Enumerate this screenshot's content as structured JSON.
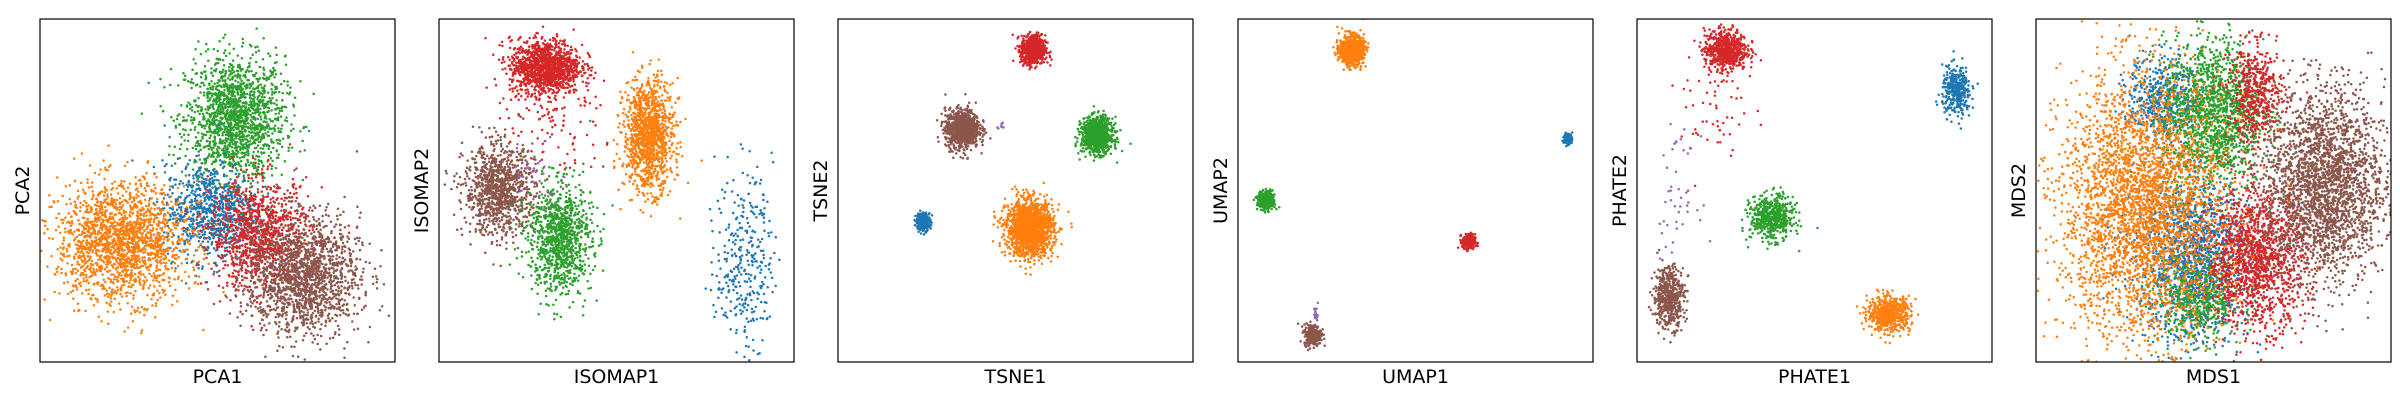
{
  "figure": {
    "colors": [
      "#1f77b4",
      "#ff7f0e",
      "#2ca02c",
      "#d62728",
      "#9467bd",
      "#8c564b"
    ]
  },
  "chart_data": [
    {
      "type": "scatter",
      "title": "",
      "xlabel": "PCA1",
      "ylabel": "PCA2",
      "xlim": [
        0,
        1
      ],
      "ylim": [
        0,
        1
      ],
      "ticks": false,
      "grid": false,
      "legend": "none",
      "clusters": [
        {
          "color": "#2ca02c",
          "cx": 0.55,
          "cy": 0.71,
          "sx": 0.07,
          "sy": 0.09,
          "n": 1600
        },
        {
          "color": "#1f77b4",
          "cx": 0.48,
          "cy": 0.44,
          "sx": 0.065,
          "sy": 0.07,
          "n": 800
        },
        {
          "color": "#ff7f0e",
          "cx": 0.23,
          "cy": 0.35,
          "sx": 0.09,
          "sy": 0.085,
          "n": 1800
        },
        {
          "color": "#d62728",
          "cx": 0.62,
          "cy": 0.37,
          "sx": 0.07,
          "sy": 0.08,
          "n": 1000
        },
        {
          "color": "#8c564b",
          "cx": 0.74,
          "cy": 0.25,
          "sx": 0.08,
          "sy": 0.085,
          "n": 1600
        }
      ]
    },
    {
      "type": "scatter",
      "title": "",
      "xlabel": "ISOMAP1",
      "ylabel": "ISOMAP2",
      "xlim": [
        0,
        1
      ],
      "ylim": [
        0,
        1
      ],
      "ticks": false,
      "grid": false,
      "legend": "none",
      "clusters": [
        {
          "color": "#d62728",
          "cx": 0.3,
          "cy": 0.86,
          "sx": 0.05,
          "sy": 0.04,
          "n": 1200
        },
        {
          "color": "#d62728",
          "cx": 0.33,
          "cy": 0.68,
          "sx": 0.09,
          "sy": 0.09,
          "n": 120
        },
        {
          "color": "#ff7f0e",
          "cx": 0.59,
          "cy": 0.66,
          "sx": 0.035,
          "sy": 0.08,
          "n": 1200
        },
        {
          "color": "#8c564b",
          "cx": 0.17,
          "cy": 0.5,
          "sx": 0.05,
          "sy": 0.065,
          "n": 1000
        },
        {
          "color": "#2ca02c",
          "cx": 0.34,
          "cy": 0.36,
          "sx": 0.045,
          "sy": 0.08,
          "n": 1000
        },
        {
          "color": "#1f77b4",
          "cx": 0.86,
          "cy": 0.3,
          "sx": 0.04,
          "sy": 0.13,
          "n": 320
        },
        {
          "color": "#9467bd",
          "cx": 0.28,
          "cy": 0.55,
          "sx": 0.04,
          "sy": 0.05,
          "n": 30
        }
      ]
    },
    {
      "type": "scatter",
      "title": "",
      "xlabel": "TSNE1",
      "ylabel": "TSNE2",
      "xlim": [
        0,
        1
      ],
      "ylim": [
        0,
        1
      ],
      "ticks": false,
      "grid": false,
      "legend": "none",
      "clusters": [
        {
          "color": "#d62728",
          "cx": 0.55,
          "cy": 0.91,
          "sx": 0.017,
          "sy": 0.021,
          "n": 700
        },
        {
          "color": "#8c564b",
          "cx": 0.35,
          "cy": 0.68,
          "sx": 0.024,
          "sy": 0.028,
          "n": 900
        },
        {
          "color": "#2ca02c",
          "cx": 0.73,
          "cy": 0.66,
          "sx": 0.022,
          "sy": 0.026,
          "n": 900
        },
        {
          "color": "#1f77b4",
          "cx": 0.24,
          "cy": 0.41,
          "sx": 0.01,
          "sy": 0.013,
          "n": 250
        },
        {
          "color": "#ff7f0e",
          "cx": 0.54,
          "cy": 0.39,
          "sx": 0.033,
          "sy": 0.04,
          "n": 1600
        },
        {
          "color": "#9467bd",
          "cx": 0.46,
          "cy": 0.69,
          "sx": 0.006,
          "sy": 0.006,
          "n": 8
        }
      ]
    },
    {
      "type": "scatter",
      "title": "",
      "xlabel": "UMAP1",
      "ylabel": "UMAP2",
      "xlim": [
        0,
        1
      ],
      "ylim": [
        0,
        1
      ],
      "ticks": false,
      "grid": false,
      "legend": "none",
      "clusters": [
        {
          "color": "#ff7f0e",
          "cx": 0.32,
          "cy": 0.91,
          "sx": 0.017,
          "sy": 0.021,
          "n": 700
        },
        {
          "color": "#1f77b4",
          "cx": 0.93,
          "cy": 0.65,
          "sx": 0.006,
          "sy": 0.008,
          "n": 120
        },
        {
          "color": "#2ca02c",
          "cx": 0.08,
          "cy": 0.47,
          "sx": 0.012,
          "sy": 0.014,
          "n": 300
        },
        {
          "color": "#d62728",
          "cx": 0.65,
          "cy": 0.35,
          "sx": 0.009,
          "sy": 0.011,
          "n": 250
        },
        {
          "color": "#8c564b",
          "cx": 0.21,
          "cy": 0.08,
          "sx": 0.012,
          "sy": 0.015,
          "n": 300
        },
        {
          "color": "#9467bd",
          "cx": 0.22,
          "cy": 0.14,
          "sx": 0.003,
          "sy": 0.012,
          "n": 20
        }
      ]
    },
    {
      "type": "scatter",
      "title": "",
      "xlabel": "PHATE1",
      "ylabel": "PHATE2",
      "xlim": [
        0,
        1
      ],
      "ylim": [
        0,
        1
      ],
      "ticks": false,
      "grid": false,
      "legend": "none",
      "clusters": [
        {
          "color": "#d62728",
          "cx": 0.25,
          "cy": 0.91,
          "sx": 0.03,
          "sy": 0.03,
          "n": 600
        },
        {
          "color": "#d62728",
          "cx": 0.22,
          "cy": 0.75,
          "sx": 0.05,
          "sy": 0.1,
          "n": 60
        },
        {
          "color": "#1f77b4",
          "cx": 0.9,
          "cy": 0.79,
          "sx": 0.02,
          "sy": 0.035,
          "n": 350
        },
        {
          "color": "#9467bd",
          "cx": 0.11,
          "cy": 0.49,
          "sx": 0.03,
          "sy": 0.08,
          "n": 45
        },
        {
          "color": "#2ca02c",
          "cx": 0.38,
          "cy": 0.42,
          "sx": 0.03,
          "sy": 0.032,
          "n": 550
        },
        {
          "color": "#8c564b",
          "cx": 0.09,
          "cy": 0.19,
          "sx": 0.022,
          "sy": 0.045,
          "n": 500
        },
        {
          "color": "#ff7f0e",
          "cx": 0.71,
          "cy": 0.14,
          "sx": 0.03,
          "sy": 0.025,
          "n": 600
        }
      ]
    },
    {
      "type": "scatter",
      "title": "",
      "xlabel": "MDS1",
      "ylabel": "MDS2",
      "xlim": [
        0,
        1
      ],
      "ylim": [
        0,
        1
      ],
      "ticks": false,
      "grid": false,
      "legend": "none",
      "clusters": [
        {
          "color": "#1f77b4",
          "cx": 0.44,
          "cy": 0.3,
          "sx": 0.08,
          "sy": 0.12,
          "n": 1400
        },
        {
          "color": "#1f77b4",
          "cx": 0.36,
          "cy": 0.77,
          "sx": 0.05,
          "sy": 0.06,
          "n": 500
        },
        {
          "color": "#2ca02c",
          "cx": 0.5,
          "cy": 0.72,
          "sx": 0.07,
          "sy": 0.11,
          "n": 1500
        },
        {
          "color": "#2ca02c",
          "cx": 0.46,
          "cy": 0.18,
          "sx": 0.06,
          "sy": 0.06,
          "n": 500
        },
        {
          "color": "#d62728",
          "cx": 0.62,
          "cy": 0.3,
          "sx": 0.07,
          "sy": 0.1,
          "n": 1400
        },
        {
          "color": "#d62728",
          "cx": 0.62,
          "cy": 0.78,
          "sx": 0.04,
          "sy": 0.07,
          "n": 500
        },
        {
          "color": "#8c564b",
          "cx": 0.81,
          "cy": 0.52,
          "sx": 0.085,
          "sy": 0.14,
          "n": 2500
        },
        {
          "color": "#ff7f0e",
          "cx": 0.3,
          "cy": 0.45,
          "sx": 0.115,
          "sy": 0.19,
          "n": 3300
        }
      ]
    }
  ]
}
